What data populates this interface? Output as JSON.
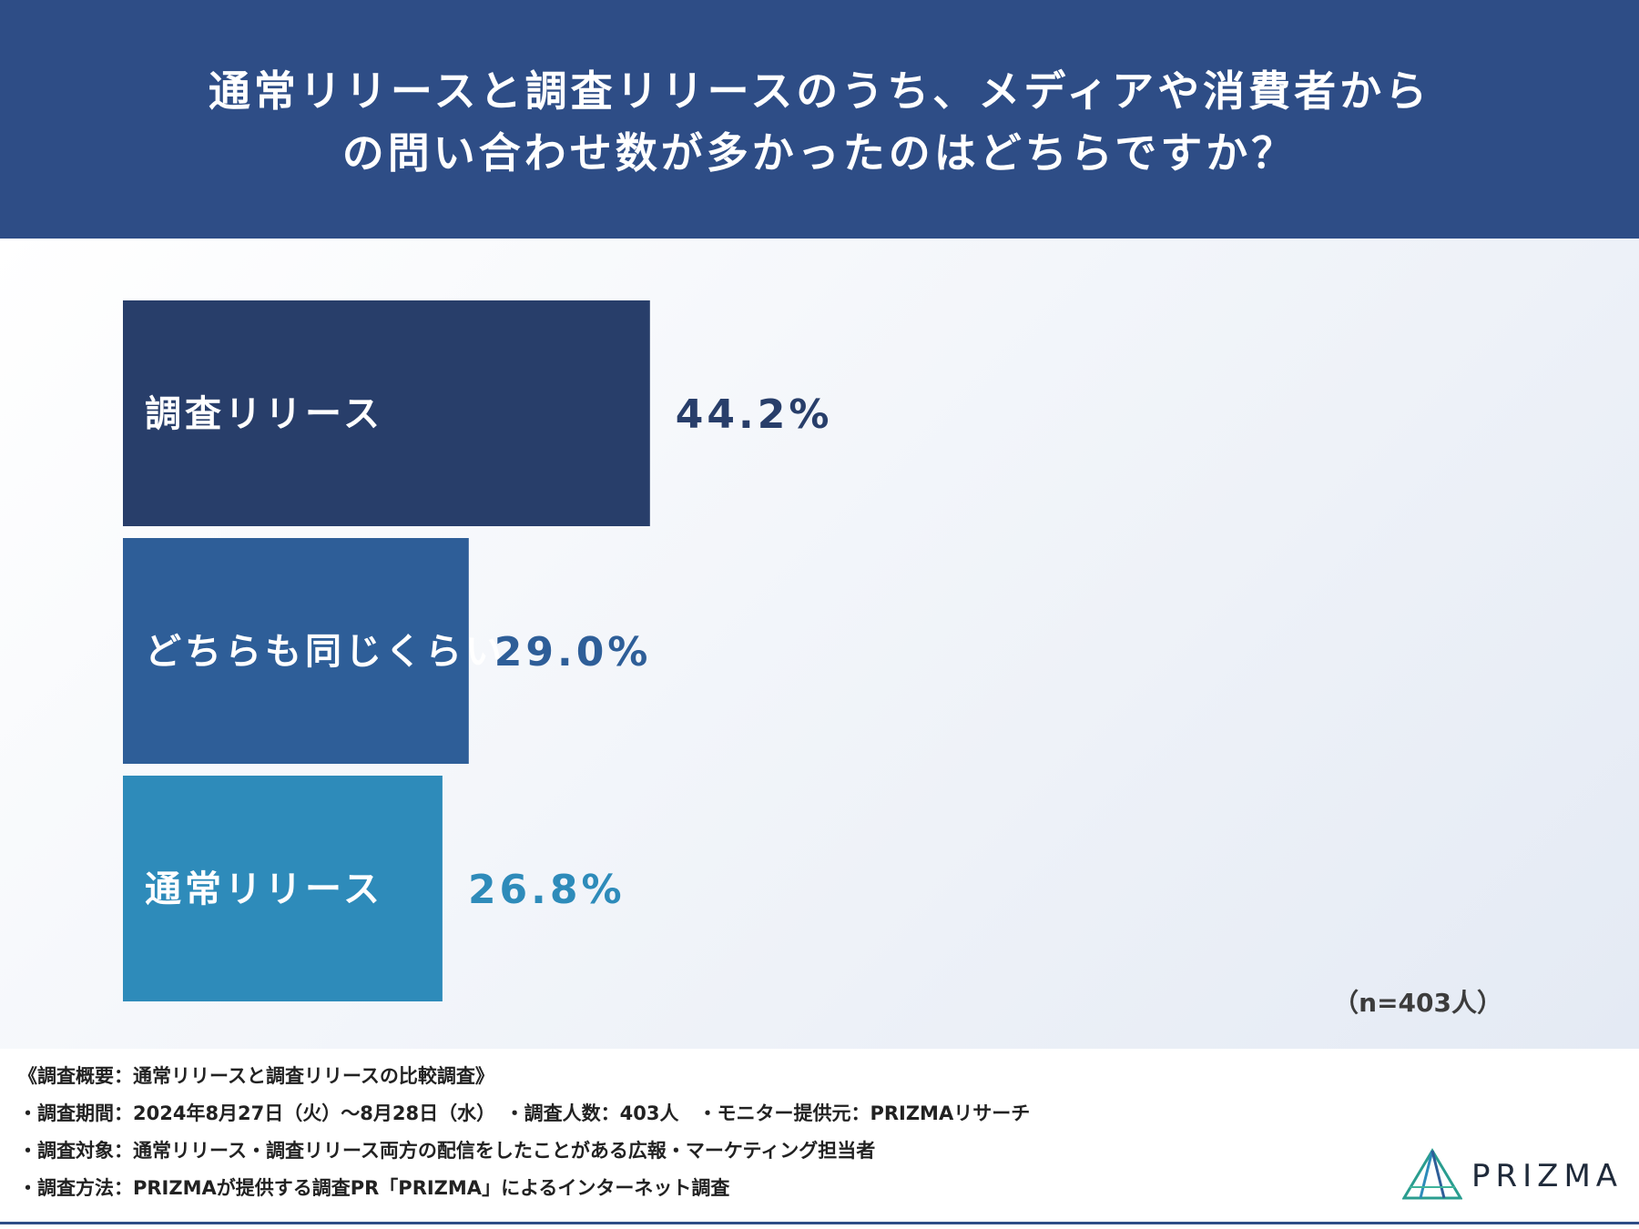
{
  "header": {
    "title_lines": [
      "通常リリースと調査リリースのうち、メディアや消費者から",
      "の問い合わせ数が多かったのはどちらですか？"
    ]
  },
  "chart_data": {
    "type": "bar",
    "orientation": "horizontal",
    "title": "通常リリースと調査リリースのうち、メディアや消費者からの問い合わせ数が多かったのはどちらですか？",
    "categories": [
      "調査リリース",
      "どちらも同じくらい",
      "通常リリース"
    ],
    "values": [
      44.2,
      29.0,
      26.8
    ],
    "value_labels": [
      "44.2%",
      "29.0%",
      "26.8%"
    ],
    "colors": [
      "#283e6a",
      "#2e5e98",
      "#2e8bba"
    ],
    "xlim": [
      0,
      100
    ],
    "grid": false,
    "legend": "none"
  },
  "sample_size": "（n=403人）",
  "footer": {
    "notes": [
      "《調査概要：通常リリースと調査リリースの比較調査》",
      "・調査期間：2024年8月27日（火）〜8月28日（水）　・調査人数：403人　・モニター提供元：PRIZMAリサーチ",
      "・調査対象：通常リリース・調査リリース両方の配信をしたことがある広報・マーケティング担当者",
      "・調査方法：PRIZMAが提供する調査PR「PRIZMA」によるインターネット調査"
    ],
    "brand": "PRIZMA"
  },
  "colors": {
    "header_bg": "#2e4d86",
    "text_dark": "#222222"
  }
}
